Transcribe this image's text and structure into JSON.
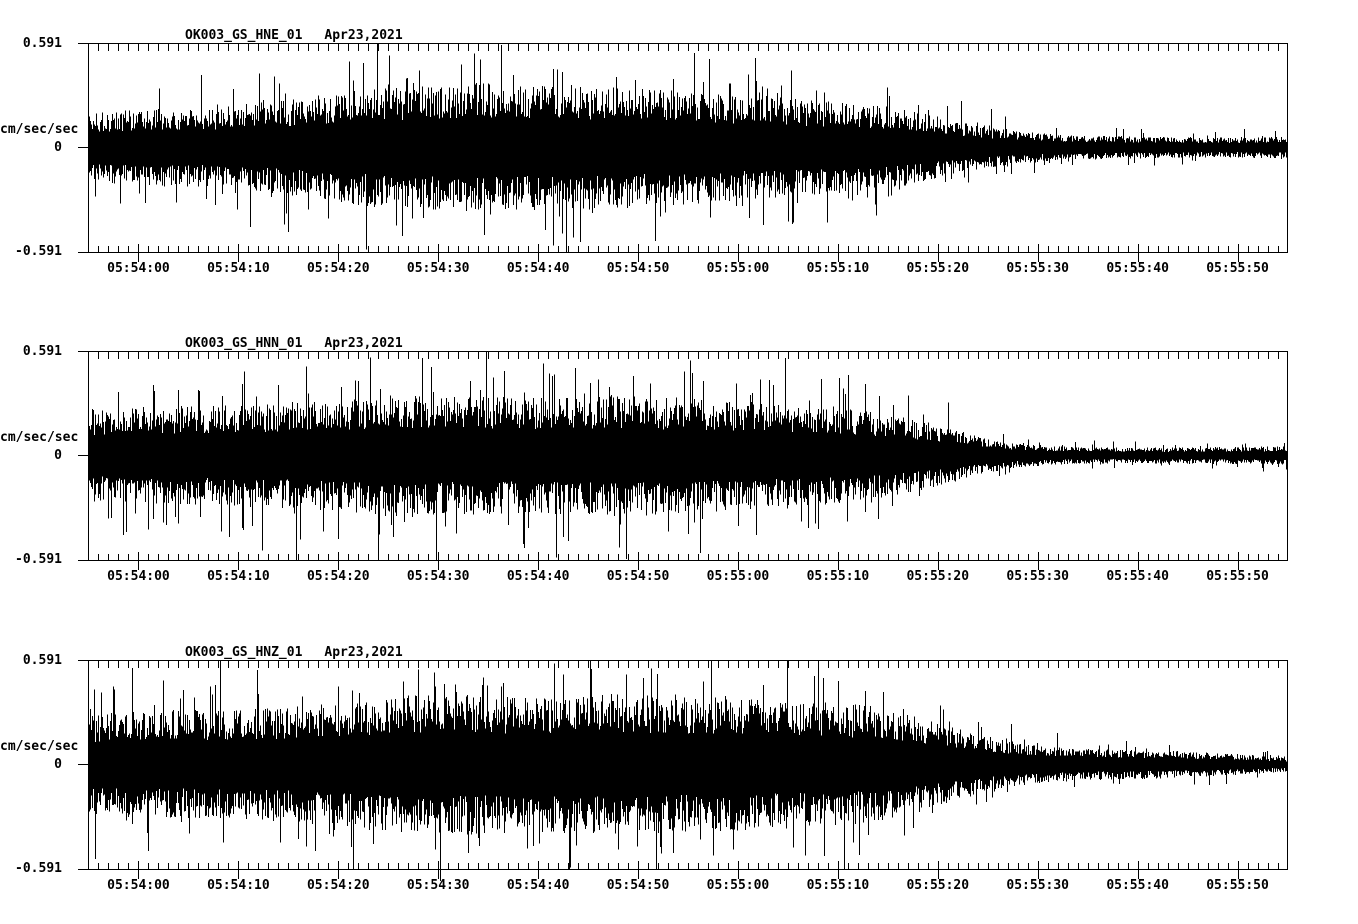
{
  "page": {
    "background_color": "#ffffff",
    "trace_color": "#000000"
  },
  "chart_data": [
    {
      "type": "line",
      "subtype": "seismogram",
      "title": "OK003_GS_HNE_01",
      "date": "Apr23,2021",
      "ylabel": "cm/sec/sec",
      "y_tick_labels": [
        "0.591",
        "0",
        "-0.591"
      ],
      "ylim": [
        -0.591,
        0.591
      ],
      "x_tick_labels": [
        "05:54:00",
        "05:54:10",
        "05:54:20",
        "05:54:30",
        "05:54:40",
        "05:54:50",
        "05:55:00",
        "05:55:10",
        "05:55:20",
        "05:55:30",
        "05:55:40",
        "05:55:50"
      ],
      "time_window": {
        "start": "05:53:55",
        "end": "05:55:55",
        "duration_s": 120
      },
      "x_minor_tick_s": 1,
      "x_major_tick_s": 10,
      "grid": false,
      "envelope": {
        "t_s": [
          0,
          4,
          8,
          12,
          16,
          20,
          24,
          28,
          32,
          36,
          40,
          44,
          48,
          52,
          56,
          60,
          64,
          68,
          72,
          76,
          80,
          84,
          88,
          92,
          96,
          100,
          106,
          112,
          120
        ],
        "amp": [
          0.17,
          0.19,
          0.2,
          0.2,
          0.22,
          0.24,
          0.27,
          0.3,
          0.31,
          0.32,
          0.33,
          0.31,
          0.32,
          0.31,
          0.3,
          0.29,
          0.27,
          0.26,
          0.24,
          0.23,
          0.21,
          0.17,
          0.12,
          0.09,
          0.07,
          0.06,
          0.055,
          0.05,
          0.055
        ]
      },
      "spikes": [
        {
          "t_s": 14.5,
          "amp": 0.33
        },
        {
          "t_s": 22,
          "amp": -0.35
        },
        {
          "t_s": 26.5,
          "amp": 0.38
        },
        {
          "t_s": 30.8,
          "amp": -0.44
        },
        {
          "t_s": 33.5,
          "amp": -0.4
        },
        {
          "t_s": 37.3,
          "amp": 0.47
        },
        {
          "t_s": 40.2,
          "amp": -0.38
        },
        {
          "t_s": 42.5,
          "amp": 0.41
        },
        {
          "t_s": 46.9,
          "amp": 0.44
        },
        {
          "t_s": 50.4,
          "amp": -0.37
        },
        {
          "t_s": 52.8,
          "amp": 0.4
        },
        {
          "t_s": 57.2,
          "amp": -0.39
        },
        {
          "t_s": 61.5,
          "amp": 0.37
        },
        {
          "t_s": 64.8,
          "amp": -0.33
        },
        {
          "t_s": 69.3,
          "amp": 0.35
        },
        {
          "t_s": 73.6,
          "amp": 0.31
        },
        {
          "t_s": 76.4,
          "amp": -0.3
        },
        {
          "t_s": 80.1,
          "amp": 0.29
        },
        {
          "t_s": 83,
          "amp": 0.24
        }
      ]
    },
    {
      "type": "line",
      "subtype": "seismogram",
      "title": "OK003_GS_HNN_01",
      "date": "Apr23,2021",
      "ylabel": "cm/sec/sec",
      "y_tick_labels": [
        "0.591",
        "0",
        "-0.591"
      ],
      "ylim": [
        -0.591,
        0.591
      ],
      "x_tick_labels": [
        "05:54:00",
        "05:54:10",
        "05:54:20",
        "05:54:30",
        "05:54:40",
        "05:54:50",
        "05:55:00",
        "05:55:10",
        "05:55:20",
        "05:55:30",
        "05:55:40",
        "05:55:50"
      ],
      "time_window": {
        "start": "05:53:55",
        "end": "05:55:55",
        "duration_s": 120
      },
      "x_minor_tick_s": 1,
      "x_major_tick_s": 10,
      "grid": false,
      "envelope": {
        "t_s": [
          0,
          4,
          8,
          12,
          16,
          20,
          24,
          28,
          32,
          36,
          40,
          44,
          48,
          52,
          56,
          60,
          64,
          68,
          72,
          76,
          80,
          84,
          87,
          90,
          93,
          96,
          100,
          106,
          112,
          120
        ],
        "amp": [
          0.23,
          0.24,
          0.25,
          0.25,
          0.26,
          0.27,
          0.28,
          0.3,
          0.31,
          0.3,
          0.3,
          0.29,
          0.3,
          0.31,
          0.3,
          0.29,
          0.28,
          0.27,
          0.26,
          0.24,
          0.21,
          0.17,
          0.13,
          0.09,
          0.06,
          0.05,
          0.042,
          0.04,
          0.042,
          0.048
        ]
      },
      "spikes": [
        {
          "t_s": 3,
          "amp": 0.36
        },
        {
          "t_s": 7.5,
          "amp": -0.38
        },
        {
          "t_s": 11,
          "amp": 0.37
        },
        {
          "t_s": 15.5,
          "amp": -0.42
        },
        {
          "t_s": 19,
          "amp": 0.4
        },
        {
          "t_s": 23.5,
          "amp": -0.43
        },
        {
          "t_s": 27,
          "amp": 0.42
        },
        {
          "t_s": 30.5,
          "amp": -0.46
        },
        {
          "t_s": 33.4,
          "amp": 0.55
        },
        {
          "t_s": 34.3,
          "amp": 0.5
        },
        {
          "t_s": 36.8,
          "amp": -0.44
        },
        {
          "t_s": 40.5,
          "amp": 0.44
        },
        {
          "t_s": 44,
          "amp": -0.41
        },
        {
          "t_s": 47.5,
          "amp": -0.46
        },
        {
          "t_s": 51,
          "amp": 0.43
        },
        {
          "t_s": 54.5,
          "amp": 0.45
        },
        {
          "t_s": 58,
          "amp": -0.43
        },
        {
          "t_s": 61.5,
          "amp": 0.42
        },
        {
          "t_s": 65,
          "amp": -0.4
        },
        {
          "t_s": 68.5,
          "amp": 0.4
        },
        {
          "t_s": 72,
          "amp": -0.41
        },
        {
          "t_s": 75.5,
          "amp": 0.38
        },
        {
          "t_s": 79,
          "amp": -0.36
        },
        {
          "t_s": 82,
          "amp": 0.34
        },
        {
          "t_s": 86,
          "amp": 0.3
        }
      ]
    },
    {
      "type": "line",
      "subtype": "seismogram",
      "title": "OK003_GS_HNZ_01",
      "date": "Apr23,2021",
      "ylabel": "cm/sec/sec",
      "y_tick_labels": [
        "0.591",
        "0",
        "-0.591"
      ],
      "ylim": [
        -0.591,
        0.591
      ],
      "x_tick_labels": [
        "05:54:00",
        "05:54:10",
        "05:54:20",
        "05:54:30",
        "05:54:40",
        "05:54:50",
        "05:55:00",
        "05:55:10",
        "05:55:20",
        "05:55:30",
        "05:55:40",
        "05:55:50"
      ],
      "time_window": {
        "start": "05:53:55",
        "end": "05:55:55",
        "duration_s": 120
      },
      "x_minor_tick_s": 1,
      "x_major_tick_s": 10,
      "grid": false,
      "envelope": {
        "t_s": [
          0,
          4,
          8,
          12,
          16,
          20,
          24,
          28,
          32,
          36,
          40,
          44,
          48,
          52,
          56,
          60,
          64,
          68,
          72,
          76,
          80,
          84,
          88,
          92,
          96,
          100,
          104,
          108,
          112,
          116,
          120
        ],
        "amp": [
          0.25,
          0.27,
          0.27,
          0.27,
          0.28,
          0.29,
          0.31,
          0.33,
          0.35,
          0.36,
          0.35,
          0.34,
          0.35,
          0.36,
          0.35,
          0.34,
          0.34,
          0.33,
          0.32,
          0.31,
          0.28,
          0.23,
          0.17,
          0.12,
          0.09,
          0.08,
          0.075,
          0.07,
          0.06,
          0.05,
          0.035
        ]
      },
      "spikes": [
        {
          "t_s": 2.5,
          "amp": 0.44
        },
        {
          "t_s": 6,
          "amp": -0.4
        },
        {
          "t_s": 9.5,
          "amp": 0.42
        },
        {
          "t_s": 13.5,
          "amp": -0.44
        },
        {
          "t_s": 17,
          "amp": 0.4
        },
        {
          "t_s": 21,
          "amp": -0.42
        },
        {
          "t_s": 25,
          "amp": 0.44
        },
        {
          "t_s": 28.5,
          "amp": -0.45
        },
        {
          "t_s": 31.5,
          "amp": 0.47
        },
        {
          "t_s": 34.6,
          "amp": 0.52
        },
        {
          "t_s": 35.2,
          "amp": -0.66
        },
        {
          "t_s": 38,
          "amp": -0.5
        },
        {
          "t_s": 41.5,
          "amp": 0.46
        },
        {
          "t_s": 44.5,
          "amp": -0.46
        },
        {
          "t_s": 47.5,
          "amp": 0.51
        },
        {
          "t_s": 50.3,
          "amp": 0.54
        },
        {
          "t_s": 53,
          "amp": -0.48
        },
        {
          "t_s": 55.5,
          "amp": 0.49
        },
        {
          "t_s": 58.5,
          "amp": -0.5
        },
        {
          "t_s": 61.5,
          "amp": 0.47
        },
        {
          "t_s": 64.5,
          "amp": -0.48
        },
        {
          "t_s": 67.5,
          "amp": 0.45
        },
        {
          "t_s": 70.5,
          "amp": -0.47
        },
        {
          "t_s": 73.5,
          "amp": 0.49
        },
        {
          "t_s": 76.5,
          "amp": -0.44
        },
        {
          "t_s": 79.5,
          "amp": 0.41
        },
        {
          "t_s": 82.5,
          "amp": -0.36
        },
        {
          "t_s": 85.5,
          "amp": 0.31
        },
        {
          "t_s": 89,
          "amp": 0.24
        }
      ]
    }
  ]
}
